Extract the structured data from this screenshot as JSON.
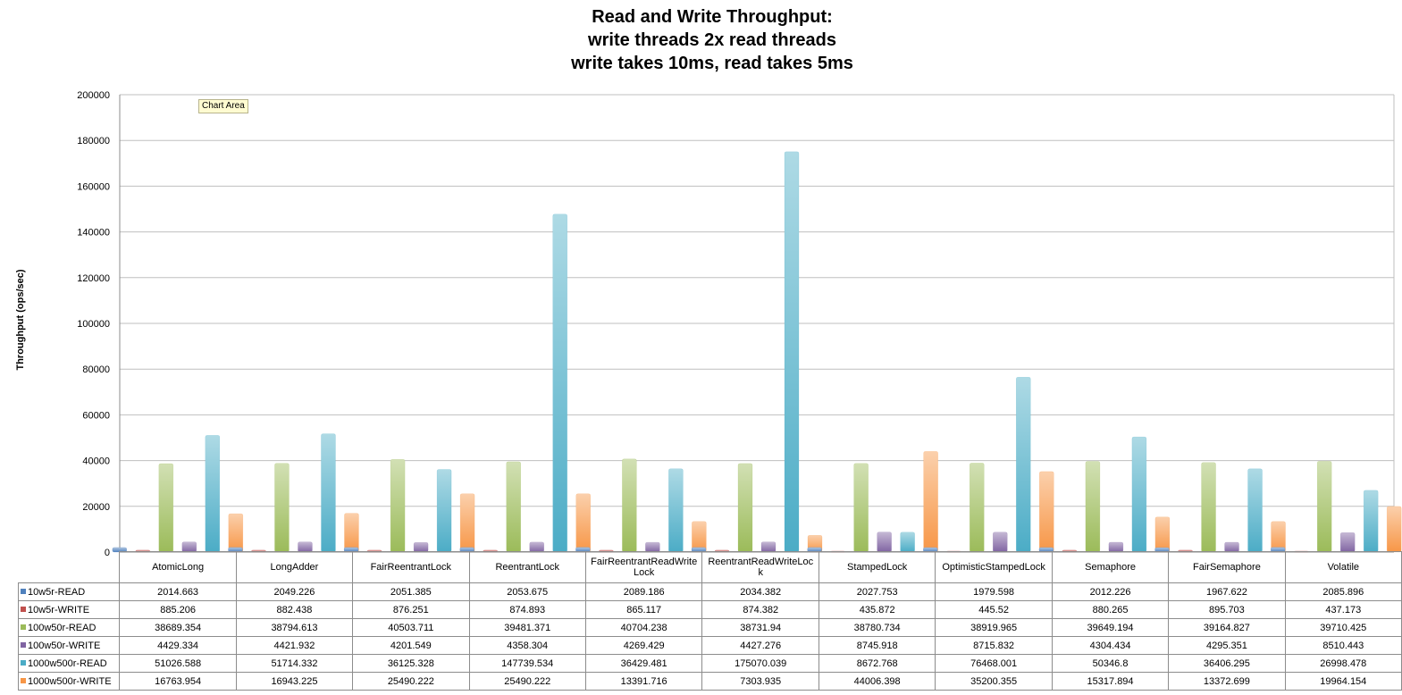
{
  "chart_data": {
    "type": "bar",
    "title": [
      "Read and Write Throughput:",
      "write threads 2x read threads",
      "write takes 10ms, read takes 5ms"
    ],
    "xlabel": "",
    "ylabel": "Throughput (ops/sec)",
    "ylim": [
      0,
      200000
    ],
    "yticks": [
      "0",
      "20000",
      "40000",
      "60000",
      "80000",
      "100000",
      "120000",
      "140000",
      "160000",
      "180000",
      "200000"
    ],
    "grid": true,
    "legend": "data-table",
    "categories": [
      "AtomicLong",
      "LongAdder",
      "FairReentrantLock",
      "ReentrantLock",
      "FairReentrantReadWriteLock",
      "ReentrantReadWriteLock",
      "StampedLock",
      "OptimisticStampedLock",
      "Semaphore",
      "FairSemaphore",
      "Volatile"
    ],
    "category_display": [
      "AtomicLong",
      "LongAdder",
      "FairReentrantLock",
      "ReentrantLock",
      "FairReentrantReadWrite\nLock",
      "ReentrantReadWriteLoc\nk",
      "StampedLock",
      "OptimisticStampedLock",
      "Semaphore",
      "FairSemaphore",
      "Volatile"
    ],
    "series": [
      {
        "name": "10w5r-READ",
        "color": "#4f81bd",
        "values": [
          2014.663,
          2049.226,
          2051.385,
          2053.675,
          2089.186,
          2034.382,
          2027.753,
          1979.598,
          2012.226,
          1967.622,
          2085.896
        ],
        "labels": [
          "2014.663",
          "2049.226",
          "2051.385",
          "2053.675",
          "2089.186",
          "2034.382",
          "2027.753",
          "1979.598",
          "2012.226",
          "1967.622",
          "2085.896"
        ]
      },
      {
        "name": "10w5r-WRITE",
        "color": "#c0504d",
        "values": [
          885.206,
          882.438,
          876.251,
          874.893,
          865.117,
          874.382,
          435.872,
          445.52,
          880.265,
          895.703,
          437.173
        ],
        "labels": [
          "885.206",
          "882.438",
          "876.251",
          "874.893",
          "865.117",
          "874.382",
          "435.872",
          "445.52",
          "880.265",
          "895.703",
          "437.173"
        ]
      },
      {
        "name": "100w50r-READ",
        "color": "#9bbb59",
        "values": [
          38689.354,
          38794.613,
          40503.711,
          39481.371,
          40704.238,
          38731.94,
          38780.734,
          38919.965,
          39649.194,
          39164.827,
          39710.425
        ],
        "labels": [
          "38689.354",
          "38794.613",
          "40503.711",
          "39481.371",
          "40704.238",
          "38731.94",
          "38780.734",
          "38919.965",
          "39649.194",
          "39164.827",
          "39710.425"
        ]
      },
      {
        "name": "100w50r-WRITE",
        "color": "#8064a2",
        "values": [
          4429.334,
          4421.932,
          4201.549,
          4358.304,
          4269.429,
          4427.276,
          8745.918,
          8715.832,
          4304.434,
          4295.351,
          8510.443
        ],
        "labels": [
          "4429.334",
          "4421.932",
          "4201.549",
          "4358.304",
          "4269.429",
          "4427.276",
          "8745.918",
          "8715.832",
          "4304.434",
          "4295.351",
          "8510.443"
        ]
      },
      {
        "name": "1000w500r-READ",
        "color": "#4bacc6",
        "values": [
          51026.588,
          51714.332,
          36125.328,
          147739.534,
          36429.481,
          175070.039,
          8672.768,
          76468.001,
          50346.8,
          36406.295,
          26998.478
        ],
        "labels": [
          "51026.588",
          "51714.332",
          "36125.328",
          "147739.534",
          "36429.481",
          "175070.039",
          "8672.768",
          "76468.001",
          "50346.8",
          "36406.295",
          "26998.478"
        ]
      },
      {
        "name": "1000w500r-WRITE",
        "color": "#f79646",
        "values": [
          16763.954,
          16943.225,
          25490.222,
          25490.222,
          13391.716,
          7303.935,
          44006.398,
          35200.355,
          15317.894,
          13372.699,
          19964.154
        ],
        "labels": [
          "16763.954",
          "16943.225",
          "25490.222",
          "25490.222",
          "13391.716",
          "7303.935",
          "44006.398",
          "35200.355",
          "15317.894",
          "13372.699",
          "19964.154"
        ]
      }
    ]
  },
  "tooltip": "Chart Area"
}
